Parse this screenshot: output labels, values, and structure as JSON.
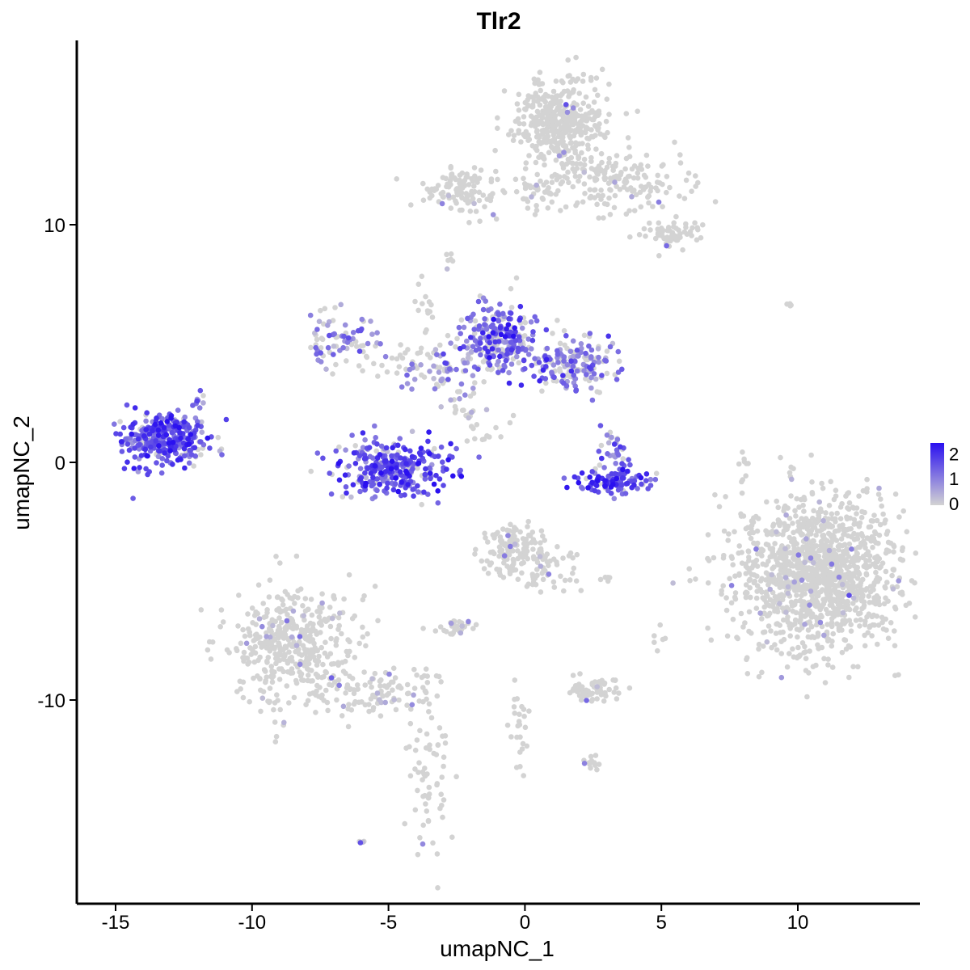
{
  "chart_data": {
    "type": "scatter",
    "title": "Tlr2",
    "xlabel": "umapNC_1",
    "ylabel": "umapNC_2",
    "xlim": [
      -16.3,
      14.5
    ],
    "ylim": [
      -18.5,
      17.8
    ],
    "xticks": [
      -15,
      -10,
      -5,
      0,
      5,
      10
    ],
    "xtick_labels": [
      "-15",
      "-10",
      "-5",
      "0",
      "5",
      "10"
    ],
    "yticks": [
      -10,
      0,
      10
    ],
    "ytick_labels": [
      "-10",
      "0",
      "10"
    ],
    "grid": false,
    "legend": {
      "placement": "right",
      "type": "colorbar",
      "ticks": [
        0,
        1,
        2
      ],
      "tick_labels": [
        "0",
        "1",
        "2"
      ],
      "low_color": "#d3d3d3",
      "high_color": "#2a10f0",
      "max_value": 2.5
    },
    "point_color_low": "#d3d3d3",
    "point_color_high": "#2a10f0",
    "clusters": [
      {
        "cx": -13.2,
        "cy": 1.0,
        "sx": 0.75,
        "sy": 0.6,
        "n": 330,
        "expr_frac": 0.88,
        "expr_mean": 1.6
      },
      {
        "cx": -4.8,
        "cy": -0.2,
        "sx": 1.1,
        "sy": 0.6,
        "n": 300,
        "expr_frac": 0.85,
        "expr_mean": 1.6
      },
      {
        "cx": -0.9,
        "cy": 5.2,
        "sx": 0.7,
        "sy": 0.8,
        "n": 240,
        "expr_frac": 0.75,
        "expr_mean": 1.4
      },
      {
        "cx": 1.9,
        "cy": 4.1,
        "sx": 0.8,
        "sy": 0.5,
        "n": 170,
        "expr_frac": 0.6,
        "expr_mean": 1.2
      },
      {
        "cx": -6.8,
        "cy": 5.2,
        "sx": 0.6,
        "sy": 0.5,
        "n": 70,
        "expr_frac": 0.55,
        "expr_mean": 1.0
      },
      {
        "cx": -3.4,
        "cy": 4.1,
        "sx": 1.2,
        "sy": 0.5,
        "n": 90,
        "expr_frac": 0.4,
        "expr_mean": 0.9
      },
      {
        "cx": 3.2,
        "cy": -0.8,
        "sx": 0.8,
        "sy": 0.25,
        "n": 110,
        "expr_frac": 0.85,
        "expr_mean": 1.8
      },
      {
        "cx": 3.3,
        "cy": 0.6,
        "sx": 0.3,
        "sy": 0.5,
        "n": 30,
        "expr_frac": 0.7,
        "expr_mean": 1.3
      },
      {
        "cx": 1.2,
        "cy": 14.2,
        "sx": 0.9,
        "sy": 0.9,
        "n": 420,
        "expr_frac": 0.01,
        "expr_mean": 0.6
      },
      {
        "cx": 3.3,
        "cy": 11.8,
        "sx": 1.3,
        "sy": 0.7,
        "n": 160,
        "expr_frac": 0.02,
        "expr_mean": 0.6
      },
      {
        "cx": 5.5,
        "cy": 9.6,
        "sx": 0.5,
        "sy": 0.3,
        "n": 60,
        "expr_frac": 0.02,
        "expr_mean": 0.6
      },
      {
        "cx": -2.3,
        "cy": 11.4,
        "sx": 0.7,
        "sy": 0.5,
        "n": 110,
        "expr_frac": 0.03,
        "expr_mean": 0.6
      },
      {
        "cx": 0.5,
        "cy": 11.3,
        "sx": 0.5,
        "sy": 0.4,
        "n": 40,
        "expr_frac": 0.02,
        "expr_mean": 0.6
      },
      {
        "cx": 10.7,
        "cy": -4.6,
        "sx": 1.5,
        "sy": 1.6,
        "n": 1300,
        "expr_frac": 0.03,
        "expr_mean": 0.5
      },
      {
        "cx": -8.5,
        "cy": -7.6,
        "sx": 1.1,
        "sy": 1.3,
        "n": 420,
        "expr_frac": 0.04,
        "expr_mean": 0.6
      },
      {
        "cx": -5.5,
        "cy": -9.6,
        "sx": 1.3,
        "sy": 0.5,
        "n": 120,
        "expr_frac": 0.05,
        "expr_mean": 0.6
      },
      {
        "cx": -3.6,
        "cy": -13.8,
        "sx": 0.4,
        "sy": 1.4,
        "n": 60,
        "expr_frac": 0.03,
        "expr_mean": 0.6
      },
      {
        "cx": -0.4,
        "cy": -3.7,
        "sx": 0.6,
        "sy": 0.6,
        "n": 130,
        "expr_frac": 0.07,
        "expr_mean": 0.7
      },
      {
        "cx": 0.8,
        "cy": -4.4,
        "sx": 0.7,
        "sy": 0.5,
        "n": 50,
        "expr_frac": 0.06,
        "expr_mean": 0.6
      },
      {
        "cx": 2.5,
        "cy": -9.6,
        "sx": 0.5,
        "sy": 0.25,
        "n": 60,
        "expr_frac": 0.03,
        "expr_mean": 0.6
      },
      {
        "cx": -2.4,
        "cy": -6.9,
        "sx": 0.4,
        "sy": 0.2,
        "n": 30,
        "expr_frac": 0.05,
        "expr_mean": 0.6
      },
      {
        "cx": -0.2,
        "cy": -11.0,
        "sx": 0.2,
        "sy": 1.2,
        "n": 25,
        "expr_frac": 0.05,
        "expr_mean": 0.6
      },
      {
        "cx": -3.6,
        "cy": 6.3,
        "sx": 0.2,
        "sy": 0.8,
        "n": 15,
        "expr_frac": 0.05,
        "expr_mean": 0.6
      },
      {
        "cx": -2.3,
        "cy": 2.5,
        "sx": 0.3,
        "sy": 0.4,
        "n": 20,
        "expr_frac": 0.3,
        "expr_mean": 0.7
      },
      {
        "cx": -1.6,
        "cy": 1.5,
        "sx": 0.5,
        "sy": 0.5,
        "n": 15,
        "expr_frac": 0.15,
        "expr_mean": 0.6
      },
      {
        "cx": 2.4,
        "cy": -12.6,
        "sx": 0.25,
        "sy": 0.2,
        "n": 12,
        "expr_frac": 0.3,
        "expr_mean": 0.7
      },
      {
        "cx": 8.0,
        "cy": -0.5,
        "sx": 0.15,
        "sy": 0.6,
        "n": 8,
        "expr_frac": 0.1,
        "expr_mean": 0.6
      },
      {
        "cx": -11.9,
        "cy": 2.6,
        "sx": 0.2,
        "sy": 0.15,
        "n": 8,
        "expr_frac": 0.6,
        "expr_mean": 1.0
      },
      {
        "cx": -2.8,
        "cy": 8.6,
        "sx": 0.1,
        "sy": 0.15,
        "n": 6,
        "expr_frac": 0.2,
        "expr_mean": 0.6
      },
      {
        "cx": -6.0,
        "cy": -16.0,
        "sx": 0.12,
        "sy": 0.1,
        "n": 4,
        "expr_frac": 0.5,
        "expr_mean": 0.8
      },
      {
        "cx": 9.6,
        "cy": 6.7,
        "sx": 0.2,
        "sy": 0.05,
        "n": 4,
        "expr_frac": 0.0,
        "expr_mean": 0.5
      },
      {
        "cx": 5.0,
        "cy": -7.4,
        "sx": 0.15,
        "sy": 0.3,
        "n": 6,
        "expr_frac": 0.0,
        "expr_mean": 0.5
      },
      {
        "cx": 2.9,
        "cy": -4.9,
        "sx": 0.3,
        "sy": 0.05,
        "n": 6,
        "expr_frac": 0.0,
        "expr_mean": 0.5
      }
    ]
  }
}
